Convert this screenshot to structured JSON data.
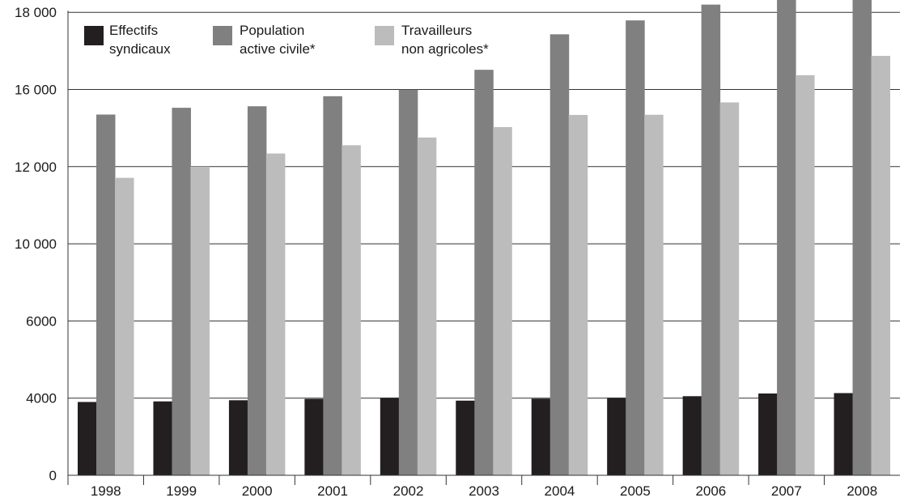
{
  "chart_data": {
    "type": "bar",
    "categories": [
      "1998",
      "1999",
      "2000",
      "2001",
      "2002",
      "2003",
      "2004",
      "2005",
      "2006",
      "2007",
      "2008"
    ],
    "y_tick_values": [
      0,
      4000,
      6000,
      10000,
      12000,
      16000,
      18000
    ],
    "y_tick_labels": [
      "0",
      "4000",
      "6000",
      "10 000",
      "12 000",
      "16 000",
      "18 000"
    ],
    "series": [
      {
        "name_lines": [
          "Effectifs",
          "syndicaux"
        ],
        "color": "#231f20",
        "values": [
          3800,
          3830,
          3890,
          3960,
          4010,
          3870,
          3970,
          4010,
          4050,
          4120,
          4130
        ]
      },
      {
        "name_lines": [
          "Population",
          "active civile*"
        ],
        "color": "#808080",
        "values": [
          14700,
          15050,
          15130,
          15650,
          15990,
          16510,
          17430,
          17790,
          18200,
          18800,
          19550
        ]
      },
      {
        "name_lines": [
          "Travailleurs",
          " non agricoles*"
        ],
        "color": "#bcbcbc",
        "values": [
          11710,
          12000,
          12680,
          13110,
          13510,
          14050,
          14680,
          14690,
          15330,
          16370,
          16870
        ]
      }
    ],
    "grid": true,
    "legend": "top-left"
  }
}
